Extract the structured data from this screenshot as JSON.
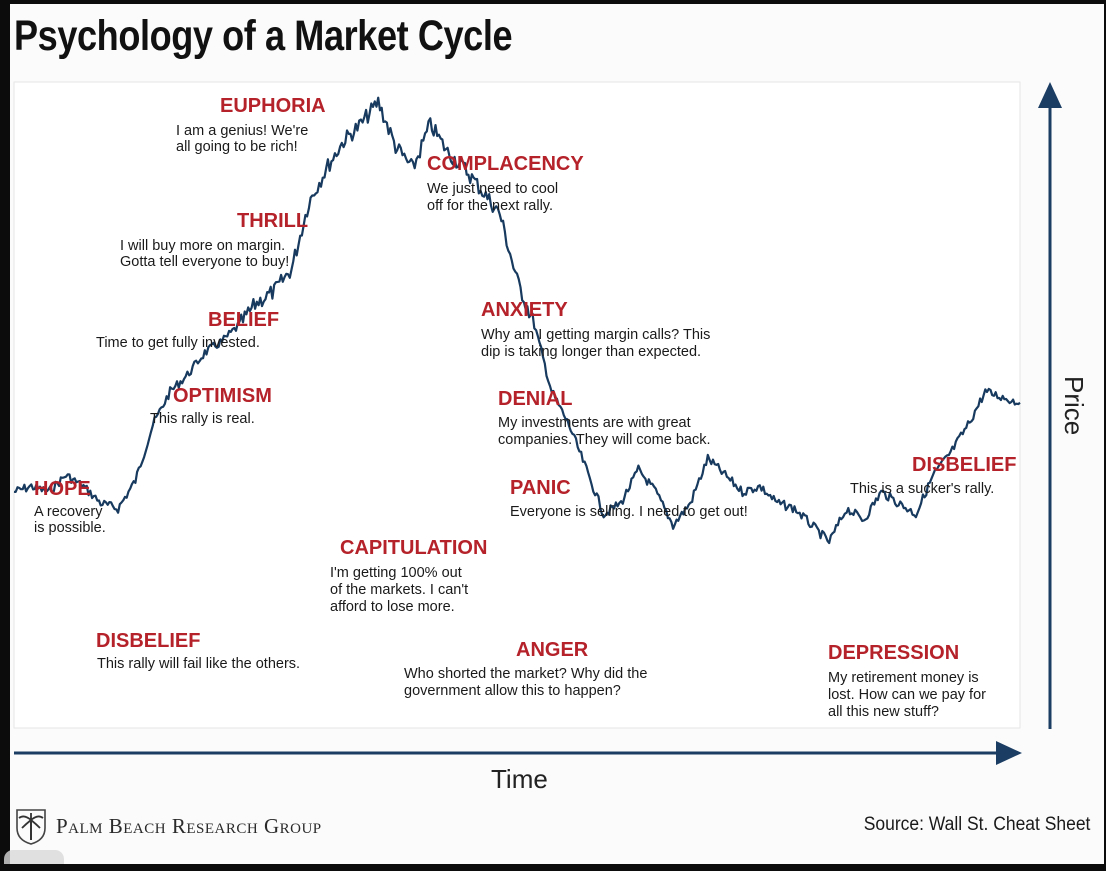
{
  "title": "Psychology of a Market Cycle",
  "colors": {
    "price_line": "#173a5e",
    "label_red": "#b5222a",
    "axis_blue": "#1b3d63",
    "text": "#1a1a1a"
  },
  "footer": {
    "brand": "Palm Beach Research Group",
    "source": "Source: Wall St. Cheat Sheet",
    "logo_icon": "palm-tree-seal-icon"
  },
  "chart_data": {
    "type": "line",
    "title": "Psychology of a Market Cycle",
    "xlabel": "Time",
    "ylabel": "Price",
    "x_ticks": [],
    "y_ticks": [],
    "grid": false,
    "legend": "none",
    "note": "Conceptual price path; no numeric scale printed. Values are relative price levels on a 0-100 scale read from the chart shape.",
    "series": [
      {
        "values": [
          30,
          31,
          30,
          33,
          31,
          28,
          27,
          32,
          42,
          48,
          51,
          55,
          57,
          60,
          64,
          66,
          70,
          82,
          88,
          93,
          96,
          100,
          92,
          88,
          96,
          91,
          88,
          84,
          80,
          68,
          60,
          48,
          42,
          34,
          26,
          28,
          34,
          30,
          24,
          28,
          36,
          33,
          30,
          31,
          28,
          27,
          24,
          21,
          27,
          25,
          30,
          28,
          26,
          33,
          37,
          42,
          48,
          47,
          46
        ],
        "phases": [
          {
            "phase": "DISBELIEF",
            "text": "This rally will fail like the others."
          },
          {
            "phase": "HOPE",
            "text": "A recovery is possible."
          },
          {
            "phase": "OPTIMISM",
            "text": "This rally is real."
          },
          {
            "phase": "BELIEF",
            "text": "Time to get fully invested."
          },
          {
            "phase": "THRILL",
            "text": "I will buy more on margin. Gotta tell everyone to buy!"
          },
          {
            "phase": "EUPHORIA",
            "text": "I am a genius! We're all going to be rich!"
          },
          {
            "phase": "COMPLACENCY",
            "text": "We just need to cool off for the next rally."
          },
          {
            "phase": "ANXIETY",
            "text": "Why am I getting margin calls? This dip is taking longer than expected."
          },
          {
            "phase": "DENIAL",
            "text": "My investments are with great companies. They will come back."
          },
          {
            "phase": "PANIC",
            "text": "Everyone is selling. I need to get out!"
          },
          {
            "phase": "CAPITULATION",
            "text": "I'm getting 100% out of the markets. I can't afford to lose more."
          },
          {
            "phase": "ANGER",
            "text": "Who shorted the market? Why did the government allow this to happen?"
          },
          {
            "phase": "DEPRESSION",
            "text": "My retirement money is lost. How can we pay for all this new stuff?"
          },
          {
            "phase": "DISBELIEF",
            "text": "This is a sucker's rally."
          }
        ]
      }
    ]
  },
  "annotations": [
    {
      "id": "disbelief-1",
      "title": "DISBELIEF",
      "lines": [
        "This rally will fail like the others."
      ]
    },
    {
      "id": "hope",
      "title": "HOPE",
      "lines": [
        "A recovery",
        "is possible."
      ]
    },
    {
      "id": "optimism",
      "title": "OPTIMISM",
      "lines": [
        "This rally is real."
      ]
    },
    {
      "id": "belief",
      "title": "BELIEF",
      "lines": [
        "Time to get fully invested."
      ]
    },
    {
      "id": "thrill",
      "title": "THRILL",
      "lines": [
        "I will buy more on margin.",
        "Gotta tell everyone to buy!"
      ]
    },
    {
      "id": "euphoria",
      "title": "EUPHORIA",
      "lines": [
        "I am a genius! We're",
        "all going to be rich!"
      ]
    },
    {
      "id": "complacency",
      "title": "COMPLACENCY",
      "lines": [
        "We just need to cool",
        "off for the next rally."
      ]
    },
    {
      "id": "anxiety",
      "title": "ANXIETY",
      "lines": [
        "Why am I getting margin calls? This",
        "dip is taking longer than expected."
      ]
    },
    {
      "id": "denial",
      "title": "DENIAL",
      "lines": [
        "My investments are with great",
        "companies. They will come back."
      ]
    },
    {
      "id": "panic",
      "title": "PANIC",
      "lines": [
        "Everyone is selling. I need to get out!"
      ]
    },
    {
      "id": "capitulation",
      "title": "CAPITULATION",
      "lines": [
        "I'm getting 100% out",
        "of the markets. I can't",
        "afford to lose more."
      ]
    },
    {
      "id": "anger",
      "title": "ANGER",
      "lines": [
        "Who shorted the market? Why did the",
        "government allow this to happen?"
      ]
    },
    {
      "id": "depression",
      "title": "DEPRESSION",
      "lines": [
        "My retirement money is",
        "lost. How can we pay for",
        "all this new stuff?"
      ]
    },
    {
      "id": "disbelief-2",
      "title": "DISBELIEF",
      "lines": [
        "This is a sucker's rally."
      ]
    }
  ]
}
